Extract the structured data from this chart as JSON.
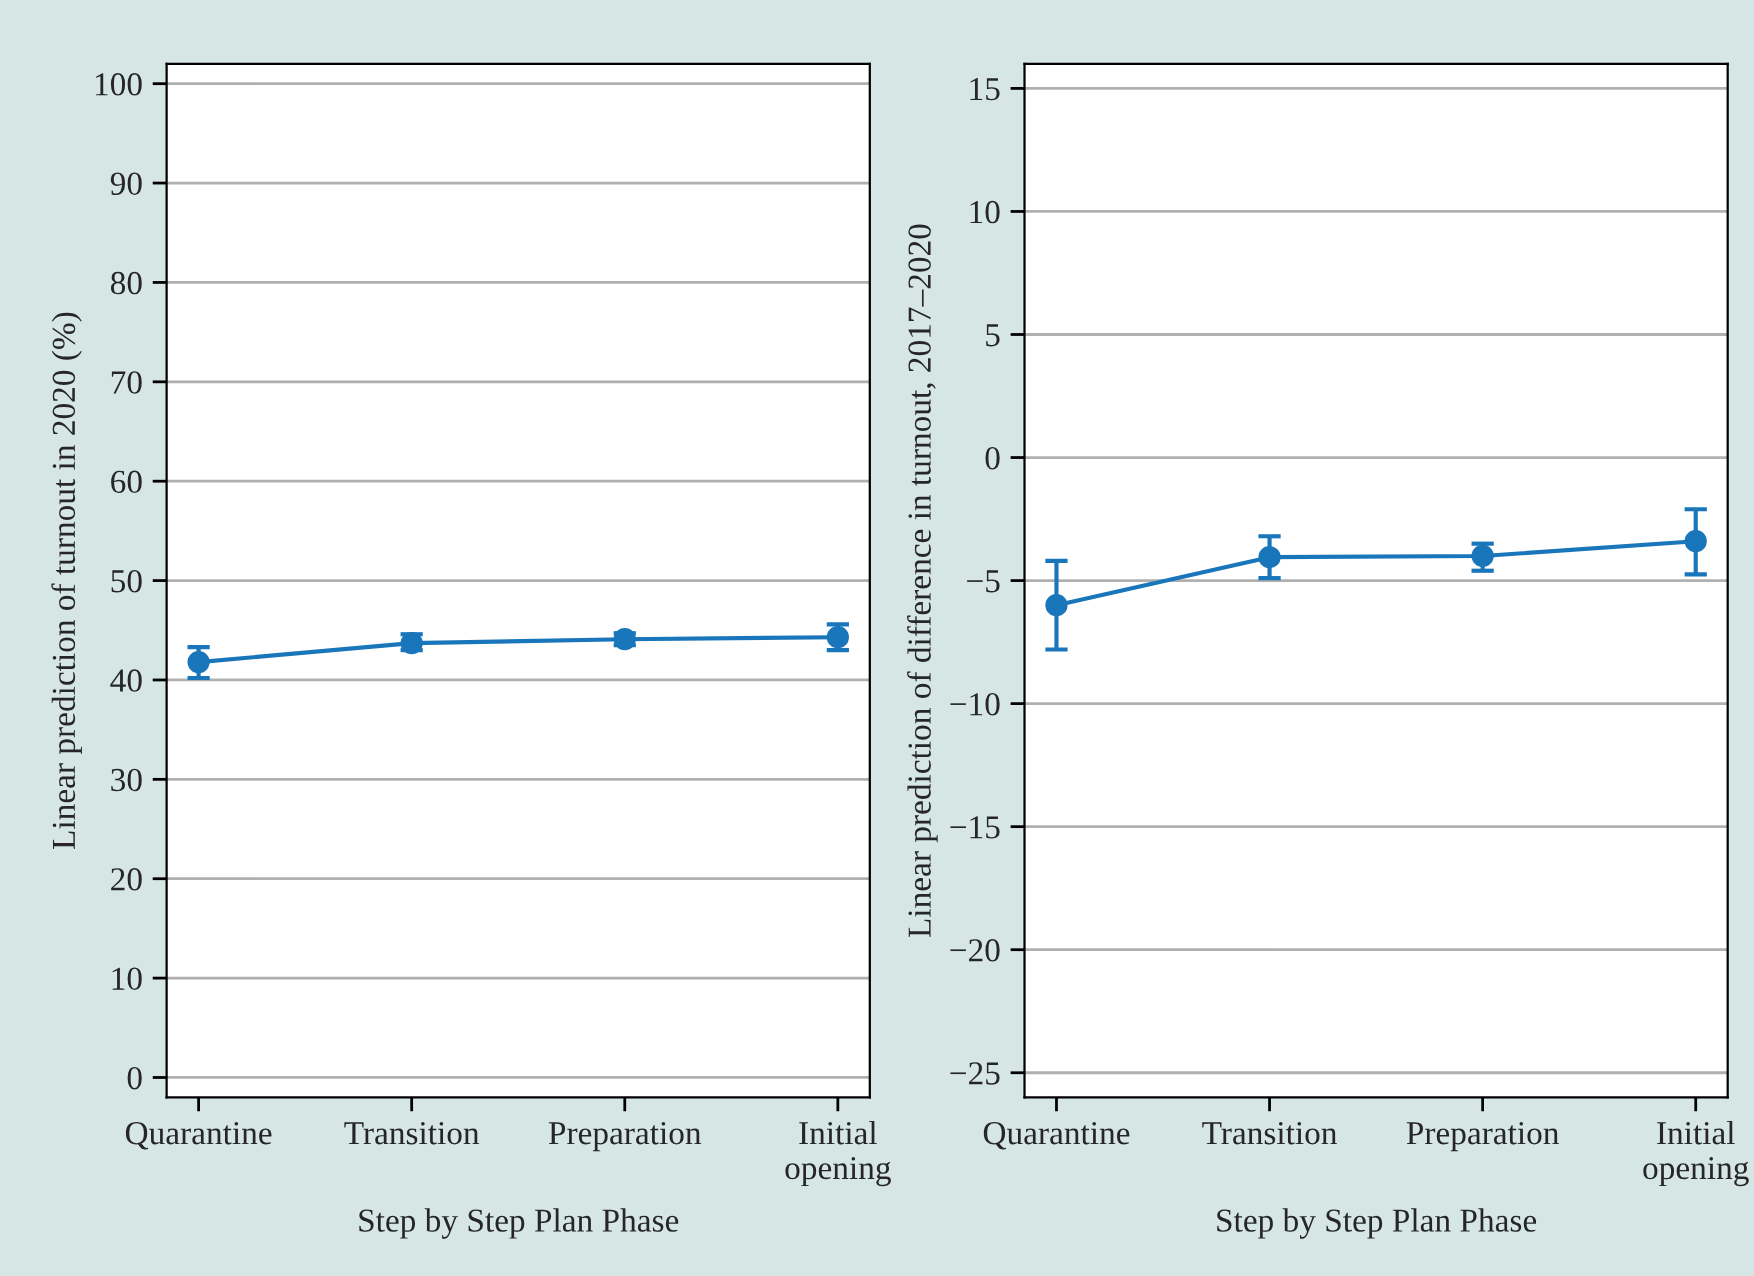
{
  "chart_data": [
    {
      "type": "line",
      "categories": [
        "Quarantine",
        "Transition",
        "Preparation",
        "Initial\nopening"
      ],
      "xlabel": "Step by Step Plan Phase",
      "ylabel": "Linear prediction of turnout in 2020 (%)",
      "ylim": [
        -2,
        102
      ],
      "yticks": [
        0,
        10,
        20,
        30,
        40,
        50,
        60,
        70,
        80,
        90,
        100
      ],
      "grid": "y",
      "marker": "circle",
      "line_style": "solid",
      "series": [
        {
          "color": "#1a76bb",
          "values": [
            41.8,
            43.7,
            44.1,
            44.3
          ],
          "errors": [
            [
              40.2,
              43.3
            ],
            [
              43.0,
              44.6
            ],
            [
              43.5,
              44.7
            ],
            [
              43.0,
              45.6
            ]
          ]
        }
      ]
    },
    {
      "type": "line",
      "categories": [
        "Quarantine",
        "Transition",
        "Preparation",
        "Initial\nopening"
      ],
      "xlabel": "Step by Step Plan Phase",
      "ylabel": "Linear prediction of difference in turnout, 2017–2020",
      "ylim": [
        -26,
        16
      ],
      "yticks": [
        {
          "value": -25,
          "label": "−25"
        },
        {
          "value": -20,
          "label": "−20"
        },
        {
          "value": -15,
          "label": "−15"
        },
        {
          "value": -10,
          "label": "−10"
        },
        {
          "value": -5,
          "label": "−5"
        },
        0,
        5,
        10,
        15
      ],
      "grid": "y",
      "marker": "circle",
      "line_style": "solid",
      "series": [
        {
          "color": "#1a76bb",
          "values": [
            -6.0,
            -4.05,
            -4.0,
            -3.4
          ],
          "errors": [
            [
              -7.8,
              -4.2
            ],
            [
              -4.9,
              -3.2
            ],
            [
              -4.6,
              -3.5
            ],
            [
              -4.75,
              -2.1
            ]
          ]
        }
      ]
    }
  ]
}
